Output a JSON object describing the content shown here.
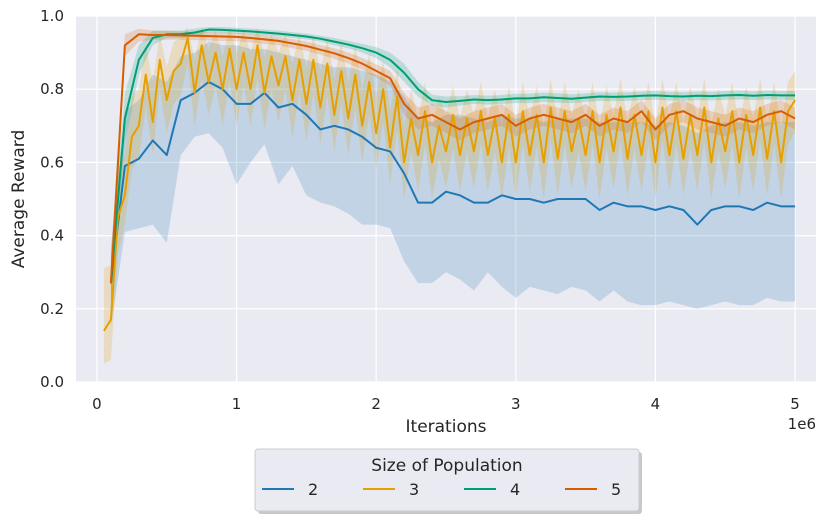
{
  "chart_data": {
    "type": "line",
    "xlabel": "Iterations",
    "ylabel": "Average Reward",
    "x_multiplier": "1e6",
    "xlim": [
      -0.15,
      5.15
    ],
    "ylim": [
      0.0,
      1.0
    ],
    "xticks": [
      0,
      1,
      2,
      3,
      4,
      5
    ],
    "xtick_labels": [
      "0",
      "1",
      "2",
      "3",
      "4",
      "5"
    ],
    "yticks": [
      0.0,
      0.2,
      0.4,
      0.6,
      0.8,
      1.0
    ],
    "ytick_labels": [
      "0.0",
      "0.2",
      "0.4",
      "0.6",
      "0.8",
      "1.0"
    ],
    "grid": true,
    "legend": {
      "title": "Size of Population",
      "placement": "bottom-center",
      "entries": [
        "2",
        "3",
        "4",
        "5"
      ]
    },
    "series": [
      {
        "name": "2",
        "color": "#1f77b4",
        "x": [
          0.1,
          0.2,
          0.3,
          0.4,
          0.5,
          0.6,
          0.7,
          0.8,
          0.9,
          1.0,
          1.1,
          1.2,
          1.3,
          1.4,
          1.5,
          1.6,
          1.7,
          1.8,
          1.9,
          2.0,
          2.1,
          2.2,
          2.3,
          2.4,
          2.5,
          2.6,
          2.7,
          2.8,
          2.9,
          3.0,
          3.1,
          3.2,
          3.3,
          3.4,
          3.5,
          3.6,
          3.7,
          3.8,
          3.9,
          4.0,
          4.1,
          4.2,
          4.3,
          4.4,
          4.5,
          4.6,
          4.7,
          4.8,
          4.9,
          5.0
        ],
        "y": [
          0.27,
          0.59,
          0.61,
          0.66,
          0.62,
          0.77,
          0.79,
          0.82,
          0.8,
          0.76,
          0.76,
          0.79,
          0.75,
          0.76,
          0.73,
          0.69,
          0.7,
          0.69,
          0.67,
          0.64,
          0.63,
          0.57,
          0.49,
          0.49,
          0.52,
          0.51,
          0.49,
          0.49,
          0.51,
          0.5,
          0.5,
          0.49,
          0.5,
          0.5,
          0.5,
          0.47,
          0.49,
          0.48,
          0.48,
          0.47,
          0.48,
          0.47,
          0.43,
          0.47,
          0.48,
          0.48,
          0.47,
          0.49,
          0.48,
          0.48
        ],
        "lower": [
          0.15,
          0.41,
          0.42,
          0.43,
          0.38,
          0.62,
          0.67,
          0.68,
          0.64,
          0.54,
          0.6,
          0.65,
          0.54,
          0.59,
          0.51,
          0.49,
          0.48,
          0.46,
          0.43,
          0.43,
          0.42,
          0.33,
          0.27,
          0.27,
          0.3,
          0.28,
          0.25,
          0.3,
          0.26,
          0.23,
          0.26,
          0.25,
          0.24,
          0.26,
          0.25,
          0.22,
          0.25,
          0.22,
          0.21,
          0.21,
          0.22,
          0.21,
          0.2,
          0.21,
          0.22,
          0.21,
          0.21,
          0.23,
          0.22,
          0.22
        ],
        "upper": [
          0.37,
          0.74,
          0.77,
          0.84,
          0.82,
          0.89,
          0.9,
          0.93,
          0.92,
          0.92,
          0.91,
          0.91,
          0.9,
          0.89,
          0.88,
          0.87,
          0.86,
          0.86,
          0.85,
          0.84,
          0.82,
          0.78,
          0.72,
          0.71,
          0.73,
          0.73,
          0.72,
          0.71,
          0.73,
          0.72,
          0.72,
          0.71,
          0.72,
          0.72,
          0.72,
          0.71,
          0.71,
          0.71,
          0.71,
          0.7,
          0.71,
          0.7,
          0.68,
          0.7,
          0.71,
          0.71,
          0.7,
          0.71,
          0.71,
          0.71
        ]
      },
      {
        "name": "3",
        "color": "#e69f00",
        "x": [
          0.05,
          0.1,
          0.15,
          0.2,
          0.25,
          0.3,
          0.35,
          0.4,
          0.45,
          0.5,
          0.55,
          0.6,
          0.65,
          0.7,
          0.75,
          0.8,
          0.85,
          0.9,
          0.95,
          1.0,
          1.05,
          1.1,
          1.15,
          1.2,
          1.25,
          1.3,
          1.35,
          1.4,
          1.45,
          1.5,
          1.55,
          1.6,
          1.65,
          1.7,
          1.75,
          1.8,
          1.85,
          1.9,
          1.95,
          2.0,
          2.05,
          2.1,
          2.15,
          2.2,
          2.25,
          2.3,
          2.35,
          2.4,
          2.45,
          2.5,
          2.55,
          2.6,
          2.65,
          2.7,
          2.75,
          2.8,
          2.85,
          2.9,
          2.95,
          3.0,
          3.05,
          3.1,
          3.15,
          3.2,
          3.25,
          3.3,
          3.35,
          3.4,
          3.45,
          3.5,
          3.55,
          3.6,
          3.65,
          3.7,
          3.75,
          3.8,
          3.85,
          3.9,
          3.95,
          4.0,
          4.05,
          4.1,
          4.15,
          4.2,
          4.25,
          4.3,
          4.35,
          4.4,
          4.45,
          4.5,
          4.55,
          4.6,
          4.65,
          4.7,
          4.75,
          4.8,
          4.85,
          4.9,
          4.95,
          5.0
        ],
        "y": [
          0.14,
          0.17,
          0.45,
          0.51,
          0.67,
          0.7,
          0.84,
          0.71,
          0.88,
          0.77,
          0.85,
          0.87,
          0.94,
          0.79,
          0.92,
          0.82,
          0.9,
          0.8,
          0.91,
          0.8,
          0.9,
          0.8,
          0.92,
          0.79,
          0.89,
          0.81,
          0.89,
          0.77,
          0.88,
          0.76,
          0.88,
          0.75,
          0.87,
          0.73,
          0.85,
          0.72,
          0.84,
          0.7,
          0.82,
          0.68,
          0.8,
          0.64,
          0.78,
          0.6,
          0.72,
          0.62,
          0.74,
          0.6,
          0.7,
          0.63,
          0.73,
          0.62,
          0.72,
          0.63,
          0.74,
          0.62,
          0.72,
          0.6,
          0.73,
          0.6,
          0.74,
          0.62,
          0.73,
          0.6,
          0.75,
          0.61,
          0.74,
          0.63,
          0.72,
          0.62,
          0.74,
          0.6,
          0.73,
          0.63,
          0.75,
          0.61,
          0.73,
          0.62,
          0.74,
          0.6,
          0.75,
          0.62,
          0.74,
          0.61,
          0.73,
          0.62,
          0.75,
          0.6,
          0.72,
          0.63,
          0.74,
          0.6,
          0.73,
          0.62,
          0.75,
          0.61,
          0.74,
          0.6,
          0.74,
          0.77
        ],
        "lower": [
          0.05,
          0.06,
          0.35,
          0.43,
          0.58,
          0.61,
          0.75,
          0.62,
          0.8,
          0.68,
          0.76,
          0.78,
          0.87,
          0.7,
          0.83,
          0.73,
          0.81,
          0.7,
          0.82,
          0.7,
          0.81,
          0.7,
          0.83,
          0.69,
          0.8,
          0.71,
          0.8,
          0.67,
          0.79,
          0.66,
          0.79,
          0.65,
          0.78,
          0.63,
          0.76,
          0.62,
          0.75,
          0.6,
          0.73,
          0.58,
          0.71,
          0.54,
          0.69,
          0.5,
          0.63,
          0.52,
          0.65,
          0.5,
          0.61,
          0.53,
          0.64,
          0.52,
          0.63,
          0.53,
          0.65,
          0.52,
          0.63,
          0.5,
          0.64,
          0.5,
          0.65,
          0.52,
          0.64,
          0.5,
          0.66,
          0.51,
          0.65,
          0.53,
          0.63,
          0.52,
          0.65,
          0.5,
          0.64,
          0.53,
          0.66,
          0.51,
          0.64,
          0.52,
          0.65,
          0.5,
          0.66,
          0.52,
          0.65,
          0.51,
          0.64,
          0.52,
          0.66,
          0.5,
          0.63,
          0.53,
          0.65,
          0.5,
          0.64,
          0.52,
          0.66,
          0.51,
          0.65,
          0.5,
          0.65,
          0.68
        ],
        "upper": [
          0.31,
          0.32,
          0.58,
          0.62,
          0.78,
          0.8,
          0.92,
          0.82,
          0.95,
          0.86,
          0.93,
          0.94,
          0.97,
          0.88,
          0.97,
          0.91,
          0.96,
          0.89,
          0.97,
          0.9,
          0.96,
          0.9,
          0.97,
          0.89,
          0.95,
          0.9,
          0.95,
          0.87,
          0.95,
          0.86,
          0.95,
          0.85,
          0.94,
          0.83,
          0.93,
          0.82,
          0.92,
          0.8,
          0.9,
          0.78,
          0.88,
          0.74,
          0.86,
          0.7,
          0.8,
          0.72,
          0.82,
          0.7,
          0.78,
          0.73,
          0.81,
          0.72,
          0.8,
          0.73,
          0.82,
          0.72,
          0.8,
          0.7,
          0.81,
          0.7,
          0.82,
          0.72,
          0.81,
          0.7,
          0.83,
          0.71,
          0.82,
          0.73,
          0.8,
          0.72,
          0.82,
          0.7,
          0.81,
          0.73,
          0.83,
          0.71,
          0.81,
          0.72,
          0.82,
          0.7,
          0.83,
          0.72,
          0.82,
          0.71,
          0.81,
          0.72,
          0.83,
          0.7,
          0.8,
          0.73,
          0.82,
          0.7,
          0.81,
          0.72,
          0.83,
          0.71,
          0.82,
          0.7,
          0.82,
          0.85
        ]
      },
      {
        "name": "4",
        "color": "#009e73",
        "x": [
          0.1,
          0.2,
          0.3,
          0.4,
          0.5,
          0.6,
          0.7,
          0.8,
          0.9,
          1.0,
          1.1,
          1.2,
          1.3,
          1.4,
          1.5,
          1.6,
          1.7,
          1.8,
          1.9,
          2.0,
          2.1,
          2.2,
          2.3,
          2.4,
          2.5,
          2.6,
          2.7,
          2.8,
          2.9,
          3.0,
          3.1,
          3.2,
          3.3,
          3.4,
          3.5,
          3.6,
          3.7,
          3.8,
          3.9,
          4.0,
          4.1,
          4.2,
          4.3,
          4.4,
          4.5,
          4.6,
          4.7,
          4.8,
          4.9,
          5.0
        ],
        "y": [
          0.27,
          0.72,
          0.88,
          0.94,
          0.95,
          0.95,
          0.955,
          0.963,
          0.962,
          0.96,
          0.958,
          0.955,
          0.952,
          0.948,
          0.944,
          0.938,
          0.93,
          0.922,
          0.912,
          0.9,
          0.88,
          0.845,
          0.8,
          0.77,
          0.765,
          0.768,
          0.772,
          0.77,
          0.772,
          0.775,
          0.775,
          0.778,
          0.776,
          0.774,
          0.777,
          0.78,
          0.779,
          0.78,
          0.782,
          0.783,
          0.781,
          0.78,
          0.782,
          0.781,
          0.783,
          0.784,
          0.782,
          0.784,
          0.783,
          0.783
        ],
        "lower": [
          0.2,
          0.65,
          0.84,
          0.92,
          0.94,
          0.94,
          0.945,
          0.955,
          0.954,
          0.952,
          0.95,
          0.947,
          0.944,
          0.94,
          0.936,
          0.93,
          0.92,
          0.912,
          0.9,
          0.885,
          0.86,
          0.82,
          0.78,
          0.755,
          0.75,
          0.755,
          0.76,
          0.758,
          0.76,
          0.762,
          0.762,
          0.765,
          0.763,
          0.762,
          0.765,
          0.768,
          0.767,
          0.768,
          0.77,
          0.771,
          0.769,
          0.768,
          0.77,
          0.769,
          0.771,
          0.772,
          0.77,
          0.772,
          0.771,
          0.771
        ],
        "upper": [
          0.34,
          0.79,
          0.92,
          0.96,
          0.96,
          0.96,
          0.965,
          0.97,
          0.97,
          0.968,
          0.966,
          0.963,
          0.96,
          0.956,
          0.952,
          0.946,
          0.94,
          0.932,
          0.924,
          0.915,
          0.9,
          0.87,
          0.82,
          0.785,
          0.78,
          0.781,
          0.784,
          0.782,
          0.784,
          0.788,
          0.788,
          0.791,
          0.789,
          0.786,
          0.789,
          0.792,
          0.791,
          0.792,
          0.794,
          0.795,
          0.793,
          0.792,
          0.794,
          0.793,
          0.795,
          0.796,
          0.794,
          0.796,
          0.795,
          0.795
        ]
      },
      {
        "name": "5",
        "color": "#d55e00",
        "x": [
          0.1,
          0.2,
          0.3,
          0.4,
          0.5,
          0.6,
          0.7,
          0.8,
          0.9,
          1.0,
          1.1,
          1.2,
          1.3,
          1.4,
          1.5,
          1.6,
          1.7,
          1.8,
          1.9,
          2.0,
          2.1,
          2.2,
          2.3,
          2.4,
          2.5,
          2.6,
          2.7,
          2.8,
          2.9,
          3.0,
          3.1,
          3.2,
          3.3,
          3.4,
          3.5,
          3.6,
          3.7,
          3.8,
          3.9,
          4.0,
          4.1,
          4.2,
          4.3,
          4.4,
          4.5,
          4.6,
          4.7,
          4.8,
          4.9,
          5.0
        ],
        "y": [
          0.27,
          0.92,
          0.95,
          0.948,
          0.948,
          0.947,
          0.946,
          0.945,
          0.944,
          0.943,
          0.94,
          0.936,
          0.932,
          0.925,
          0.918,
          0.908,
          0.898,
          0.885,
          0.87,
          0.85,
          0.83,
          0.76,
          0.72,
          0.73,
          0.71,
          0.69,
          0.71,
          0.72,
          0.73,
          0.7,
          0.72,
          0.73,
          0.72,
          0.71,
          0.73,
          0.7,
          0.72,
          0.71,
          0.74,
          0.69,
          0.73,
          0.74,
          0.72,
          0.71,
          0.7,
          0.72,
          0.71,
          0.73,
          0.74,
          0.72
        ],
        "lower": [
          0.2,
          0.89,
          0.93,
          0.935,
          0.935,
          0.935,
          0.934,
          0.933,
          0.932,
          0.931,
          0.928,
          0.924,
          0.92,
          0.912,
          0.905,
          0.894,
          0.883,
          0.87,
          0.853,
          0.832,
          0.81,
          0.73,
          0.69,
          0.7,
          0.68,
          0.66,
          0.68,
          0.69,
          0.7,
          0.67,
          0.69,
          0.7,
          0.69,
          0.68,
          0.7,
          0.67,
          0.69,
          0.68,
          0.71,
          0.66,
          0.7,
          0.71,
          0.69,
          0.68,
          0.67,
          0.69,
          0.68,
          0.7,
          0.71,
          0.69
        ],
        "upper": [
          0.34,
          0.95,
          0.965,
          0.96,
          0.96,
          0.958,
          0.957,
          0.956,
          0.955,
          0.954,
          0.951,
          0.947,
          0.943,
          0.937,
          0.93,
          0.921,
          0.912,
          0.9,
          0.886,
          0.868,
          0.85,
          0.79,
          0.75,
          0.76,
          0.74,
          0.72,
          0.74,
          0.75,
          0.76,
          0.73,
          0.75,
          0.76,
          0.75,
          0.74,
          0.76,
          0.73,
          0.75,
          0.74,
          0.77,
          0.72,
          0.76,
          0.77,
          0.75,
          0.74,
          0.73,
          0.75,
          0.74,
          0.76,
          0.77,
          0.75
        ]
      }
    ]
  }
}
